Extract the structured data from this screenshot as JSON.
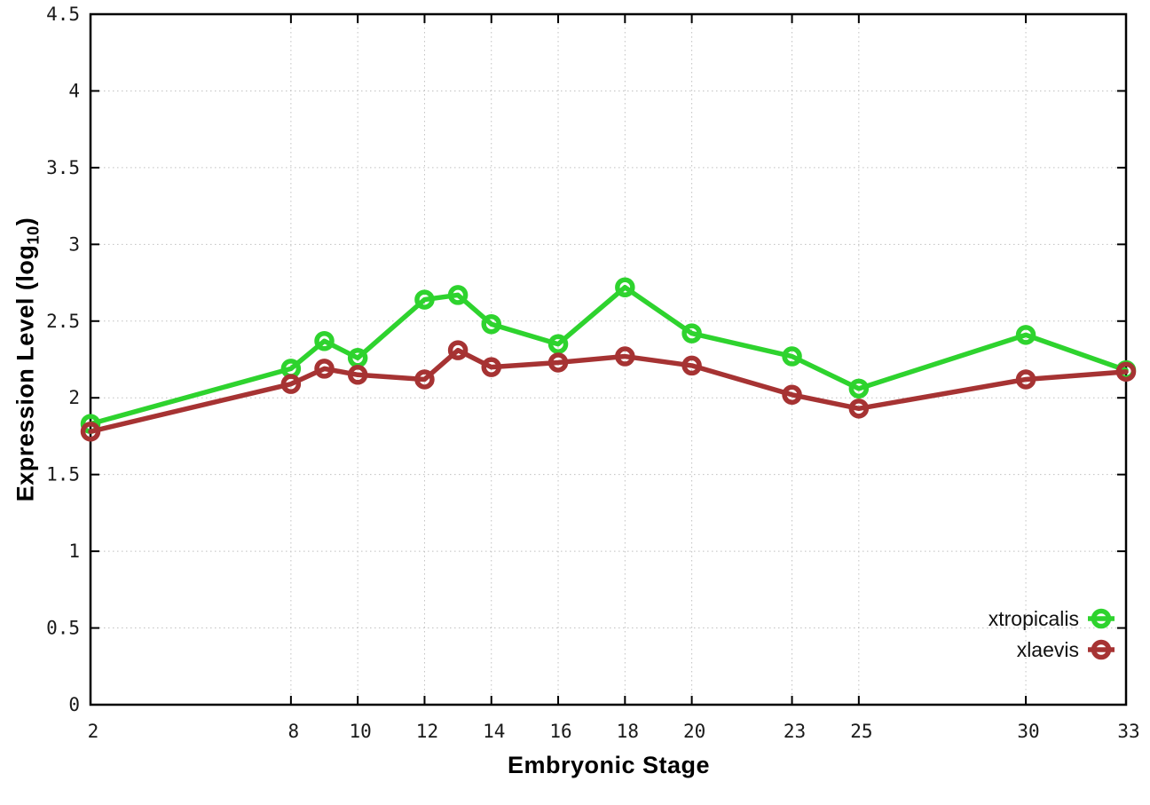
{
  "chart_data": {
    "type": "line",
    "title": "",
    "xlabel": "Embryonic Stage",
    "ylabel": "Expression Level (log10)",
    "ylabel_prefix": "Expression Level (log",
    "ylabel_subscript": "10",
    "ylabel_suffix": ")",
    "x": [
      2,
      8,
      9,
      10,
      12,
      13,
      14,
      16,
      18,
      20,
      23,
      25,
      30,
      33
    ],
    "series": [
      {
        "name": "xtropicalis",
        "color": "#2ed32e",
        "values": [
          1.83,
          2.19,
          2.37,
          2.26,
          2.64,
          2.67,
          2.48,
          2.35,
          2.72,
          2.42,
          2.27,
          2.06,
          2.41,
          2.18
        ]
      },
      {
        "name": "xlaevis",
        "color": "#a63333",
        "values": [
          1.78,
          2.09,
          2.19,
          2.15,
          2.12,
          2.31,
          2.2,
          2.23,
          2.27,
          2.21,
          2.02,
          1.93,
          2.12,
          2.17
        ]
      }
    ],
    "xlim": [
      2,
      33
    ],
    "ylim": [
      0,
      4.5
    ],
    "xticks": [
      2,
      8,
      10,
      12,
      14,
      16,
      18,
      20,
      23,
      25,
      30,
      33
    ],
    "xtick_labels": [
      "2",
      "8",
      "10",
      "12",
      "14",
      "16",
      "18",
      "20",
      "23",
      "25",
      "30",
      "33"
    ],
    "yticks": [
      0,
      0.5,
      1,
      1.5,
      2,
      2.5,
      3,
      3.5,
      4,
      4.5
    ],
    "ytick_labels": [
      "0",
      "0.5",
      "1",
      "1.5",
      "2",
      "2.5",
      "3",
      "3.5",
      "4",
      "4.5"
    ],
    "grid": true,
    "legend_position": "bottom-right",
    "colors": {
      "grid": "#c0c0c0",
      "axis": "#000000",
      "tick_text": "#1a1a1a"
    }
  }
}
